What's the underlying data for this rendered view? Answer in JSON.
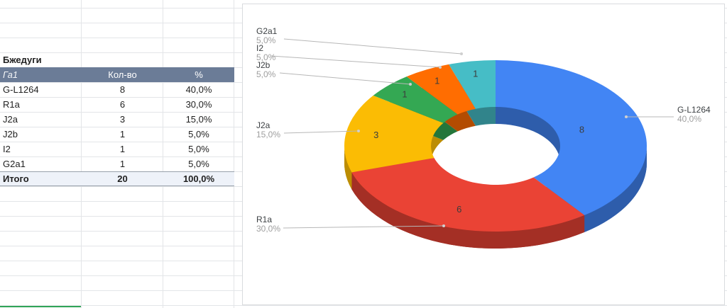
{
  "sheet": {
    "table": {
      "title": "Бжедуги",
      "columns": [
        "Га1",
        "Кол-во",
        "%"
      ],
      "rows": [
        {
          "label": "G-L1264",
          "count": "8",
          "pct": "40,0%"
        },
        {
          "label": "R1a",
          "count": "6",
          "pct": "30,0%"
        },
        {
          "label": "J2a",
          "count": "3",
          "pct": "15,0%"
        },
        {
          "label": "J2b",
          "count": "1",
          "pct": "5,0%"
        },
        {
          "label": "I2",
          "count": "1",
          "pct": "5,0%"
        },
        {
          "label": "G2a1",
          "count": "1",
          "pct": "5,0%"
        }
      ],
      "total": {
        "label": "Итого",
        "count": "20",
        "pct": "100,0%"
      }
    },
    "header_bg": "#6b7c97",
    "total_row_bg": "#eef2f9"
  },
  "chart_data": {
    "type": "pie",
    "subtype": "3d-donut",
    "title": "",
    "categories": [
      "G-L1264",
      "R1a",
      "J2a",
      "J2b",
      "I2",
      "G2a1"
    ],
    "values": [
      8,
      6,
      3,
      1,
      1,
      1
    ],
    "total": 20,
    "percent_labels": [
      "40,0%",
      "30,0%",
      "15,0%",
      "5,0%",
      "5,0%",
      "5,0%"
    ],
    "colors": [
      "#4285f4",
      "#ea4335",
      "#fbbc04",
      "#34a853",
      "#ff6d01",
      "#46bdc6"
    ],
    "shade_colors": [
      "#2e5dab",
      "#a42f25",
      "#bc8d03",
      "#24763a",
      "#b34c01",
      "#31848b"
    ],
    "hole_ratio": 0.43,
    "start_angle": 0,
    "direction": "clockwise",
    "legend": "callout-labels-with-leader-lines",
    "label_color": "#3c4043",
    "percent_color": "#9e9e9e"
  }
}
